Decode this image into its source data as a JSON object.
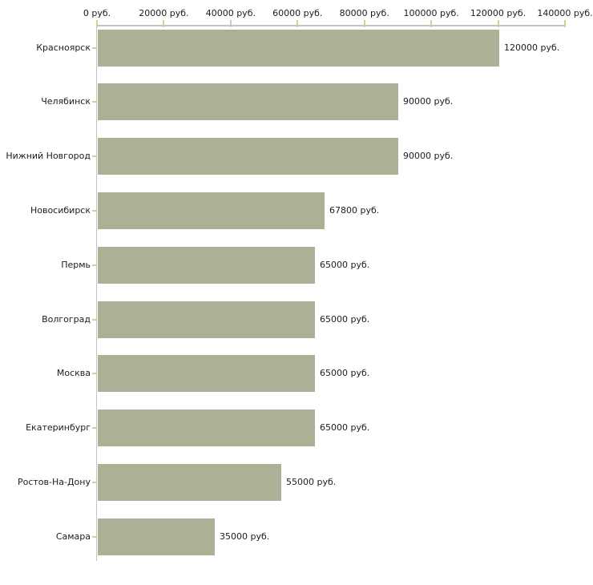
{
  "chart_data": {
    "type": "bar",
    "orientation": "horizontal",
    "title": "",
    "unit": "руб.",
    "categories": [
      "Красноярск",
      "Челябинск",
      "Нижний Новгород",
      "Новосибирск",
      "Пермь",
      "Волгоград",
      "Москва",
      "Екатеринбург",
      "Ростов-На-Дону",
      "Самара"
    ],
    "values": [
      120000,
      90000,
      90000,
      67800,
      65000,
      65000,
      65000,
      65000,
      55000,
      35000
    ],
    "value_labels": [
      "120000 руб.",
      "90000 руб.",
      "90000 руб.",
      "67800 руб.",
      "65000 руб.",
      "65000 руб.",
      "65000 руб.",
      "65000 руб.",
      "55000 руб.",
      "35000 руб."
    ],
    "x_axis": {
      "position": "top",
      "min": 0,
      "max": 140000,
      "step": 20000,
      "tick_labels": [
        "0 руб.",
        "20000 руб.",
        "40000 руб.",
        "60000 руб.",
        "80000 руб.",
        "100000 руб.",
        "120000 руб.",
        "140000 руб."
      ]
    },
    "grid": "off",
    "legend": "none",
    "colors": {
      "bar": "#acb196",
      "axis_line": "#c3c3c3",
      "tick_mark": "#cfcfa0",
      "text": "#1c1c1c",
      "background": "#ffffff"
    }
  }
}
